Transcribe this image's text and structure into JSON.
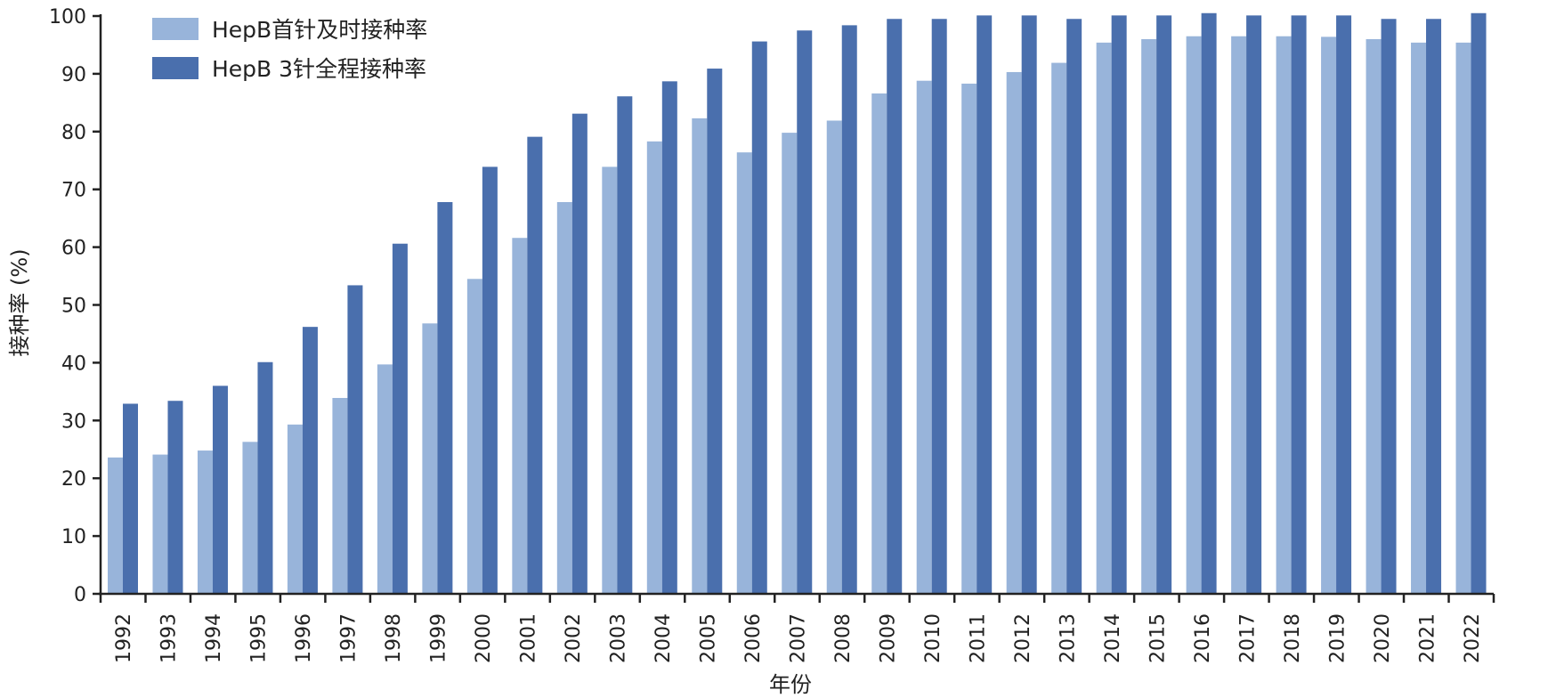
{
  "chart_data": {
    "type": "bar",
    "xlabel": "年份",
    "ylabel": "接种率 (%)",
    "ylim": [
      0,
      100
    ],
    "yticks": [
      0,
      10,
      20,
      30,
      40,
      50,
      60,
      70,
      80,
      90,
      100
    ],
    "grid": false,
    "legend_position": "top-left",
    "categories": [
      "1992",
      "1993",
      "1994",
      "1995",
      "1996",
      "1997",
      "1998",
      "1999",
      "2000",
      "2001",
      "2002",
      "2003",
      "2004",
      "2005",
      "2006",
      "2007",
      "2008",
      "2009",
      "2010",
      "2011",
      "2012",
      "2013",
      "2014",
      "2015",
      "2016",
      "2017",
      "2018",
      "2019",
      "2020",
      "2021",
      "2022"
    ],
    "series": [
      {
        "name": "HepB首针及时接种率",
        "color": "#98b4da",
        "values": [
          23.6,
          24.1,
          24.8,
          26.3,
          29.3,
          33.9,
          39.7,
          46.8,
          54.5,
          61.6,
          67.8,
          73.9,
          78.3,
          82.3,
          76.4,
          79.8,
          81.9,
          86.6,
          88.8,
          88.3,
          90.3,
          91.9,
          95.4,
          96.0,
          96.5,
          96.5,
          96.5,
          96.4,
          96.0,
          95.4,
          95.4
        ]
      },
      {
        "name": "HepB 3针全程接种率",
        "color": "#4a6fad",
        "values": [
          32.9,
          33.4,
          36.0,
          40.1,
          46.2,
          53.4,
          60.6,
          67.8,
          73.9,
          79.1,
          83.1,
          86.1,
          88.7,
          90.9,
          95.6,
          97.5,
          98.4,
          99.5,
          99.5,
          100.1,
          100.1,
          99.5,
          100.1,
          100.1,
          100.5,
          100.1,
          100.1,
          100.1,
          99.5,
          99.5,
          100.5
        ]
      }
    ]
  }
}
